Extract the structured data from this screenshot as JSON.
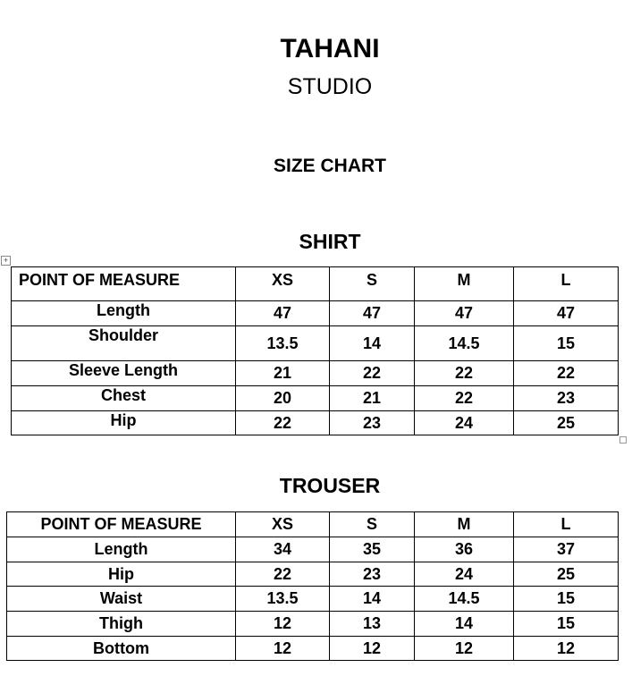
{
  "header": {
    "brand": "TAHANI",
    "subtitle": "STUDIO",
    "title": "SIZE CHART"
  },
  "shirt": {
    "title": "SHIRT",
    "columns": [
      "POINT OF MEASURE",
      "XS",
      "S",
      "M",
      "L"
    ],
    "rows": [
      [
        "Length",
        "47",
        "47",
        "47",
        "47"
      ],
      [
        "Shoulder",
        "13.5",
        "14",
        "14.5",
        "15"
      ],
      [
        "Sleeve Length",
        "21",
        "22",
        "22",
        "22"
      ],
      [
        "Chest",
        "20",
        "21",
        "22",
        "23"
      ],
      [
        "Hip",
        "22",
        "23",
        "24",
        "25"
      ]
    ]
  },
  "trouser": {
    "title": "TROUSER",
    "columns": [
      "POINT OF MEASURE",
      "XS",
      "S",
      "M",
      "L"
    ],
    "rows": [
      [
        "Length",
        "34",
        "35",
        "36",
        "37"
      ],
      [
        "Hip",
        "22",
        "23",
        "24",
        "25"
      ],
      [
        "Waist",
        "13.5",
        "14",
        "14.5",
        "15"
      ],
      [
        "Thigh",
        "12",
        "13",
        "14",
        "15"
      ],
      [
        "Bottom",
        "12",
        "12",
        "12",
        "12"
      ]
    ]
  }
}
